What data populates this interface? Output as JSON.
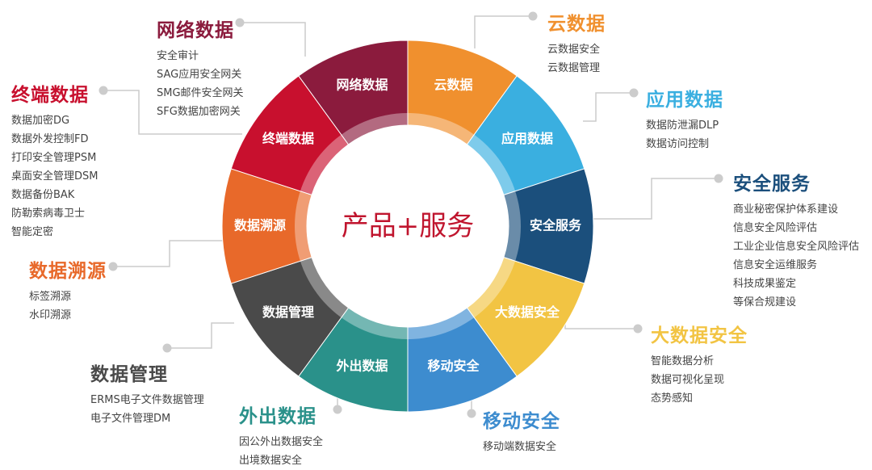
{
  "center_label": "产品+服务",
  "segments": [
    {
      "label": "云数据",
      "color": "#f0902e",
      "items": [
        "云数据安全",
        "云数据管理"
      ]
    },
    {
      "label": "应用数据",
      "color": "#3aafe0",
      "items": [
        "数据防泄漏DLP",
        "数据访问控制"
      ]
    },
    {
      "label": "安全服务",
      "color": "#1b4f7c",
      "items": [
        "商业秘密保护体系建设",
        "信息安全风险评估",
        "工业企业信息安全风险评估",
        "信息安全运维服务",
        "科技成果鉴定",
        "等保合规建设"
      ]
    },
    {
      "label": "大数据安全",
      "color": "#f2c443",
      "items": [
        "智能数据分析",
        "数据可视化呈现",
        "态势感知"
      ]
    },
    {
      "label": "移动安全",
      "color": "#3d8ccf",
      "items": [
        "移动端数据安全"
      ]
    },
    {
      "label": "外出数据",
      "color": "#2a918a",
      "items": [
        "因公外出数据安全",
        "出境数据安全"
      ]
    },
    {
      "label": "数据管理",
      "color": "#4a4a4a",
      "items": [
        "ERMS电子文件数据管理",
        "电子文件管理DM"
      ]
    },
    {
      "label": "数据溯源",
      "color": "#e8692a",
      "items": [
        "标签溯源",
        "水印溯源"
      ]
    },
    {
      "label": "终端数据",
      "color": "#c8102e",
      "items": [
        "数据加密DG",
        "数据外发控制FD",
        "打印安全管理PSM",
        "桌面安全管理DSM",
        "数据备份BAK",
        "防勒索病毒卫士",
        "智能定密"
      ]
    },
    {
      "label": "网络数据",
      "color": "#8b1b3d",
      "items": [
        "安全审计",
        "SAG应用安全网关",
        "SMG邮件安全网关",
        "SFG数据加密网关"
      ]
    }
  ]
}
